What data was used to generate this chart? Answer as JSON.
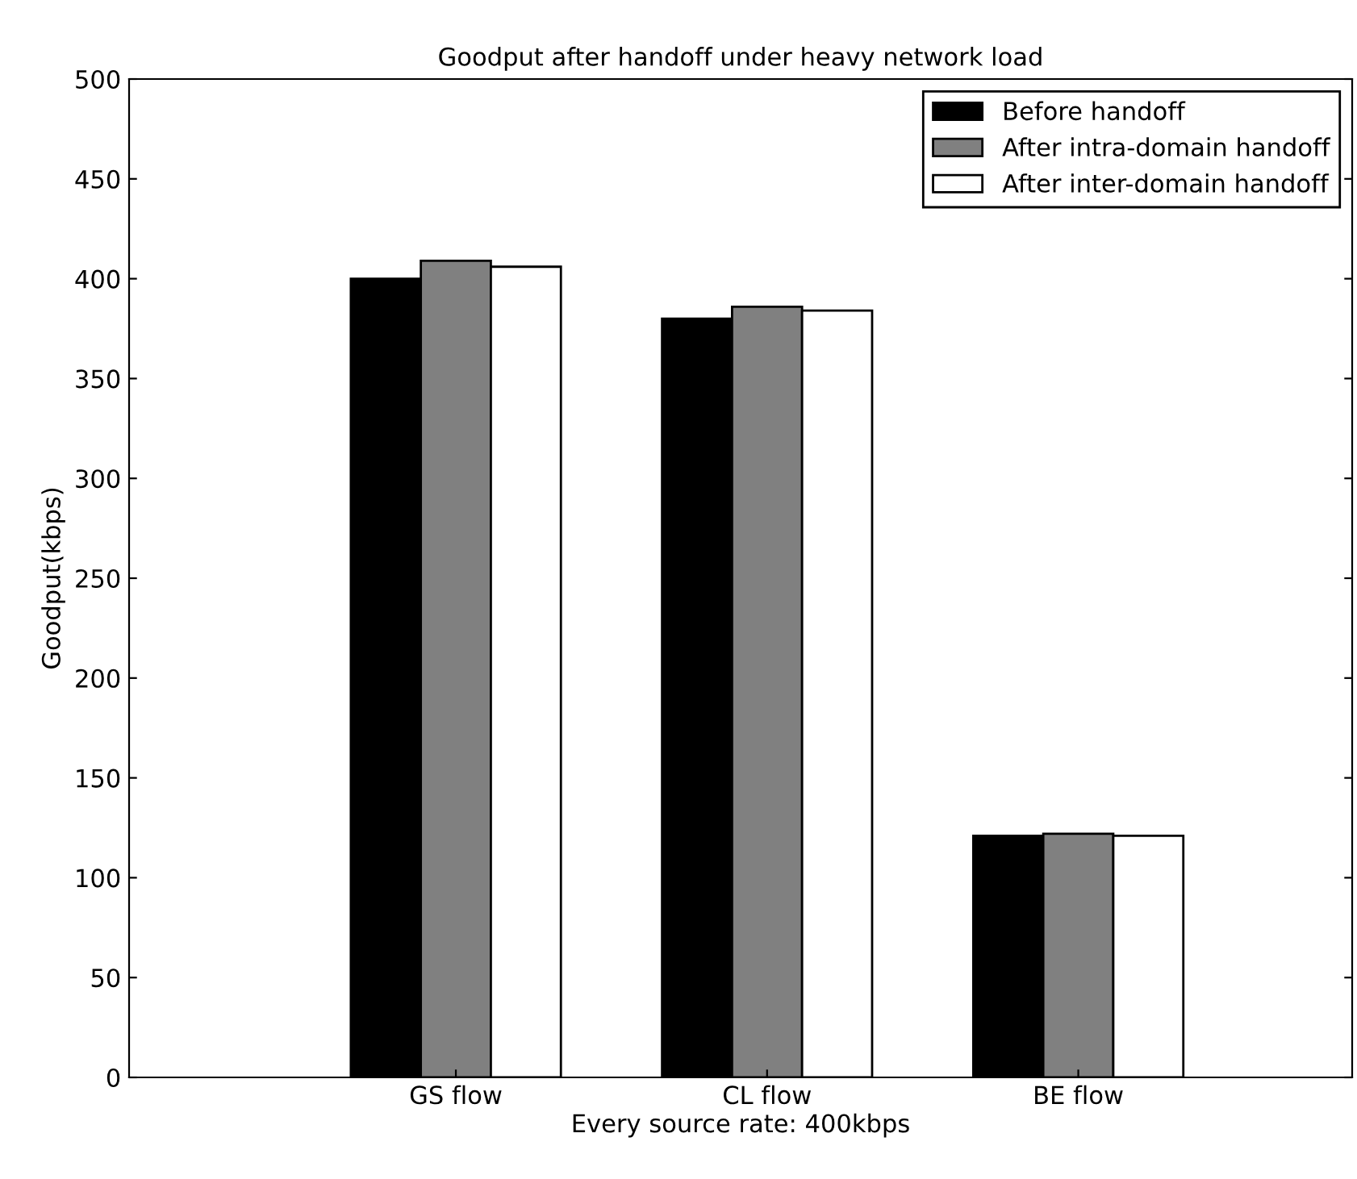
{
  "chart_data": {
    "type": "bar",
    "title": "Goodput after handoff under heavy network load",
    "xlabel": "Every source rate: 400kbps",
    "ylabel": "Goodput(kbps)",
    "categories": [
      "GS flow",
      "CL flow",
      "BE flow"
    ],
    "series": [
      {
        "name": "Before handoff",
        "color": "#000000",
        "values": [
          400,
          380,
          121
        ]
      },
      {
        "name": "After intra-domain handoff",
        "color": "#808080",
        "values": [
          409,
          386,
          122
        ]
      },
      {
        "name": "After inter-domain handoff",
        "color": "#ffffff",
        "values": [
          406,
          384,
          121
        ]
      }
    ],
    "ylim": [
      0,
      500
    ],
    "yticks": [
      0,
      50,
      100,
      150,
      200,
      250,
      300,
      350,
      400,
      450,
      500
    ],
    "grid": false,
    "legend": "top right"
  }
}
